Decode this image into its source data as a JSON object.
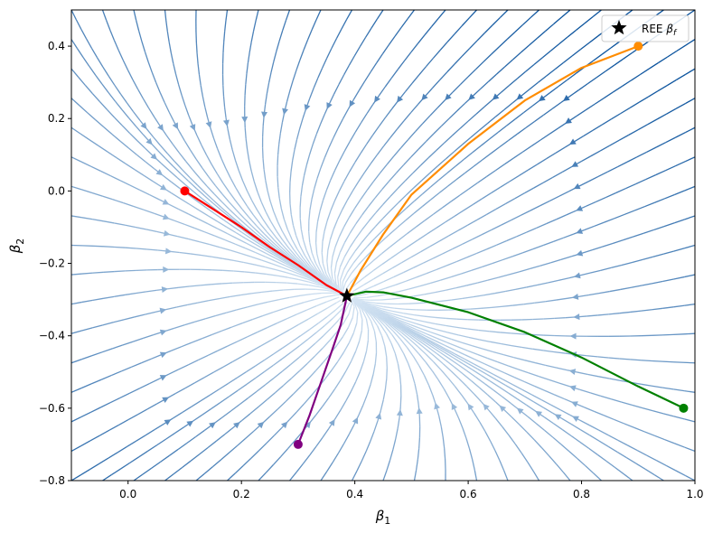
{
  "chart_data": {
    "type": "streamplot",
    "xlabel": "β1",
    "ylabel": "β2",
    "xlim": [
      -0.1,
      1.0
    ],
    "ylim": [
      -0.8,
      0.5
    ],
    "xticks": [
      0.0,
      0.2,
      0.4,
      0.6,
      0.8,
      1.0
    ],
    "xtick_labels": [
      "0.0",
      "0.2",
      "0.4",
      "0.6",
      "0.8",
      "1.0"
    ],
    "yticks": [
      -0.8,
      -0.6,
      -0.4,
      -0.2,
      0.0,
      0.2,
      0.4
    ],
    "ytick_labels": [
      "−0.8",
      "−0.6",
      "−0.4",
      "−0.2",
      "0.0",
      "0.2",
      "0.4"
    ],
    "grid": false,
    "legend": {
      "position": "top-right",
      "entries": [
        {
          "label": "REE βf",
          "marker": "star",
          "color": "#000000"
        }
      ]
    },
    "equilibrium": {
      "name": "REE βf",
      "x": 0.386,
      "y": -0.29
    },
    "streamlines": {
      "colormap": "Blues",
      "description": "flow converging to equilibrium"
    },
    "series": [
      {
        "color": "#ff0000",
        "start": [
          0.1,
          0.0
        ],
        "points": [
          [
            0.1,
            0.0
          ],
          [
            0.15,
            -0.05
          ],
          [
            0.2,
            -0.1
          ],
          [
            0.25,
            -0.155
          ],
          [
            0.3,
            -0.205
          ],
          [
            0.35,
            -0.26
          ],
          [
            0.386,
            -0.29
          ]
        ]
      },
      {
        "color": "#ff8c00",
        "start": [
          0.9,
          0.4
        ],
        "points": [
          [
            0.9,
            0.4
          ],
          [
            0.8,
            0.34
          ],
          [
            0.7,
            0.25
          ],
          [
            0.6,
            0.13
          ],
          [
            0.5,
            -0.01
          ],
          [
            0.45,
            -0.12
          ],
          [
            0.41,
            -0.22
          ],
          [
            0.386,
            -0.29
          ]
        ]
      },
      {
        "color": "#008000",
        "start": [
          0.98,
          -0.6
        ],
        "points": [
          [
            0.98,
            -0.6
          ],
          [
            0.9,
            -0.54
          ],
          [
            0.8,
            -0.46
          ],
          [
            0.7,
            -0.39
          ],
          [
            0.6,
            -0.335
          ],
          [
            0.5,
            -0.295
          ],
          [
            0.45,
            -0.28
          ],
          [
            0.42,
            -0.278
          ],
          [
            0.386,
            -0.29
          ]
        ]
      },
      {
        "color": "#800080",
        "start": [
          0.3,
          -0.7
        ],
        "points": [
          [
            0.3,
            -0.7
          ],
          [
            0.32,
            -0.62
          ],
          [
            0.34,
            -0.53
          ],
          [
            0.36,
            -0.44
          ],
          [
            0.375,
            -0.37
          ],
          [
            0.386,
            -0.29
          ]
        ]
      }
    ]
  }
}
